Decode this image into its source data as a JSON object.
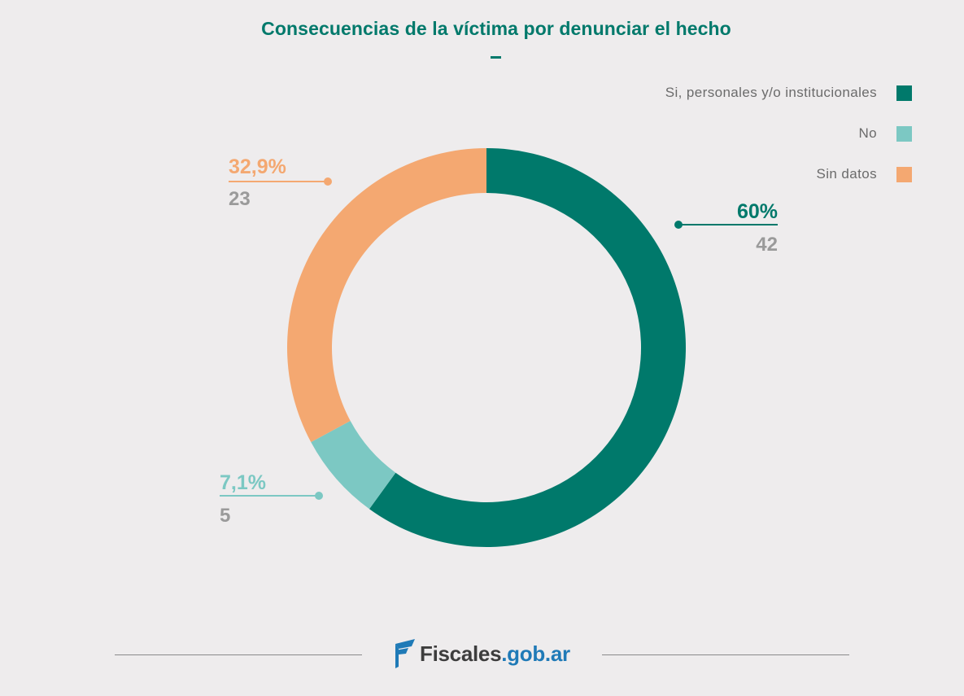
{
  "chart_data": {
    "type": "pie",
    "subtype": "donut",
    "title": "Consecuencias de la víctima por denunciar el hecho",
    "legend_position": "top-right",
    "categories": [
      "Si, personales y/o institucionales",
      "No",
      "Sin datos"
    ],
    "values": [
      42,
      5,
      23
    ],
    "percent_labels": [
      "60%",
      "7,1%",
      "32,9%"
    ],
    "count_labels": [
      "42",
      "5",
      "23"
    ],
    "colors": [
      "#00796b",
      "#7cc8c3",
      "#f4a871"
    ]
  },
  "footer": {
    "logo_main": "Fiscales",
    "logo_domain": ".gob.ar"
  }
}
